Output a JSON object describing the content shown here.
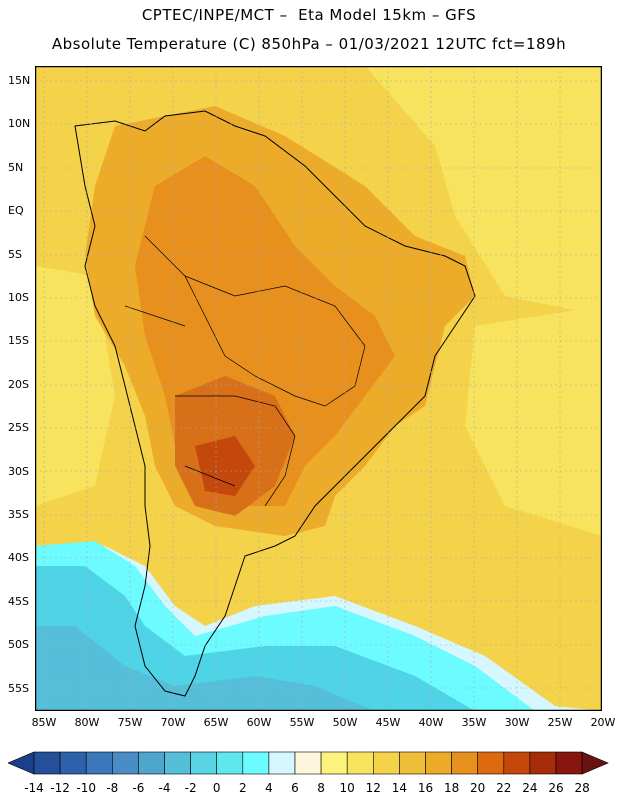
{
  "title": {
    "line1": "CPTEC/INPE/MCT –  Eta Model 15km – GFS",
    "line2": "Absolute Temperature (C) 850hPa – 01/03/2021 12UTC fct=189h"
  },
  "lat_ticks": [
    "15N",
    "10N",
    "5N",
    "EQ",
    "5S",
    "10S",
    "15S",
    "20S",
    "25S",
    "30S",
    "35S",
    "40S",
    "45S",
    "50S",
    "55S"
  ],
  "lon_ticks": [
    "85W",
    "80W",
    "75W",
    "70W",
    "65W",
    "60W",
    "55W",
    "50W",
    "45W",
    "40W",
    "35W",
    "30W",
    "25W",
    "20W"
  ],
  "colorbar": {
    "labels": [
      "-14",
      "-12",
      "-10",
      "-8",
      "-6",
      "-4",
      "-2",
      "0",
      "2",
      "4",
      "6",
      "8",
      "10",
      "12",
      "14",
      "16",
      "18",
      "20",
      "22",
      "24",
      "26",
      "28"
    ],
    "colors": [
      "#1b3f8b",
      "#234f9b",
      "#2d62ab",
      "#3a77bb",
      "#4a8cc6",
      "#4ea6cf",
      "#55bfda",
      "#5ad4e4",
      "#5ee8ee",
      "#6cfbff",
      "#d6f7ff",
      "#fdf6dc",
      "#fcf27c",
      "#f8e35e",
      "#f4d24a",
      "#f0bf3a",
      "#ecac2a",
      "#e7901e",
      "#de6a10",
      "#c4470c",
      "#a62d0a",
      "#86160e",
      "#6a1212"
    ]
  },
  "colors": {
    "cold": "#4fd3e6",
    "cool": "#6cfbff",
    "transition": "#d6f7ff",
    "mild": "#f8e35e",
    "warm": "#f0bf3a",
    "hot": "#e7901e",
    "hotter": "#d8701a",
    "hottest": "#b84f10"
  }
}
